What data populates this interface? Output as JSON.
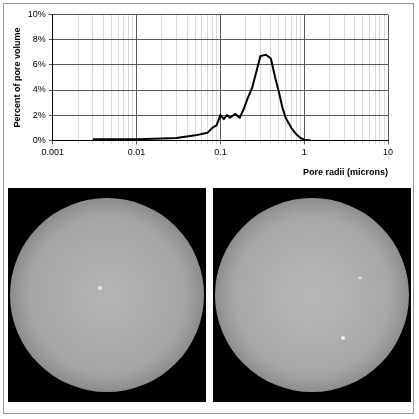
{
  "chart_data": {
    "type": "line",
    "x_label": "Pore radii (microns)",
    "y_label": "Percent of pore volume",
    "x": [
      0.003,
      0.005,
      0.01,
      0.02,
      0.03,
      0.05,
      0.07,
      0.08,
      0.09,
      0.1,
      0.11,
      0.12,
      0.13,
      0.15,
      0.17,
      0.19,
      0.21,
      0.24,
      0.27,
      0.3,
      0.35,
      0.4,
      0.45,
      0.5,
      0.55,
      0.6,
      0.7,
      0.8,
      0.9,
      1.0,
      1.2
    ],
    "values": [
      0.1,
      0.1,
      0.1,
      0.15,
      0.2,
      0.4,
      0.6,
      1.0,
      1.2,
      2.0,
      1.7,
      2.0,
      1.8,
      2.1,
      1.8,
      2.5,
      3.3,
      4.2,
      5.5,
      6.7,
      6.8,
      6.5,
      5.0,
      3.8,
      2.6,
      1.8,
      1.0,
      0.5,
      0.2,
      0.05,
      0
    ],
    "color": "#000000",
    "log": "x",
    "grid": true,
    "xlim": [
      0.001,
      10
    ],
    "xticks": [
      0.001,
      0.01,
      0.1,
      1,
      10
    ],
    "ylim": [
      0,
      10
    ],
    "yticks": [
      {
        "value": 0,
        "label": "0%"
      },
      {
        "value": 2,
        "label": "2%"
      },
      {
        "value": 4,
        "label": "4%"
      },
      {
        "value": 6,
        "label": "6%"
      },
      {
        "value": 8,
        "label": "8%"
      },
      {
        "value": 10,
        "label": "10%"
      }
    ]
  }
}
